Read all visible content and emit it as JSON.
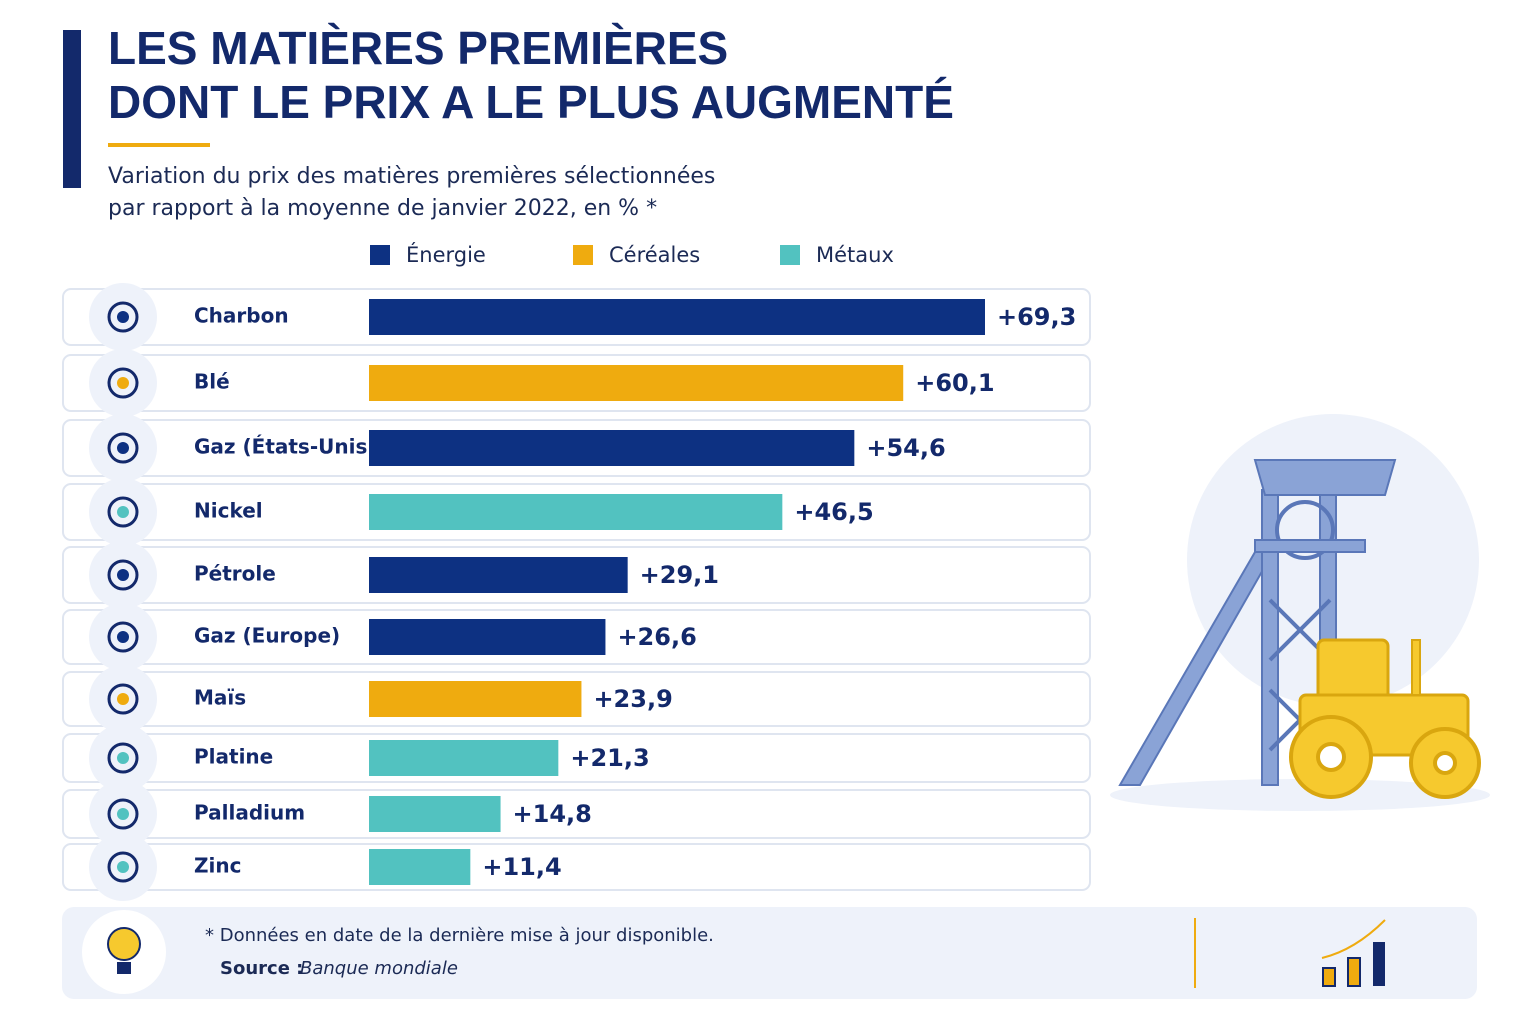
{
  "chart_data": {
    "type": "bar",
    "orientation": "horizontal",
    "title_lines": [
      "LES MATIÈRES PREMIÈRES",
      "DONT LE PRIX A LE PLUS AUGMENTÉ"
    ],
    "subtitle_lines": [
      "Variation du prix des matières premières sélectionnées",
      "par rapport à la moyenne de janvier 2022, en % *"
    ],
    "legend": [
      {
        "name": "Énergie",
        "color": "#0d3182"
      },
      {
        "name": "Céréales",
        "color": "#efab0f"
      },
      {
        "name": "Métaux",
        "color": "#52c2c0"
      }
    ],
    "categories": [
      "Charbon",
      "Blé",
      "Gaz (États-Unis)",
      "Nickel",
      "Pétrole",
      "Gaz (Europe)",
      "Maïs",
      "Platine",
      "Palladium",
      "Zinc"
    ],
    "values": [
      69.3,
      60.1,
      54.6,
      46.5,
      29.1,
      26.6,
      23.9,
      21.3,
      14.8,
      11.4
    ],
    "value_labels": [
      "+69,3",
      "+60,1",
      "+54,6",
      "+46,5",
      "+29,1",
      "+26,6",
      "+23,9",
      "+21,3",
      "+14,8",
      "+11,4"
    ],
    "colors": [
      "#0d3182",
      "#efab0f",
      "#0d3182",
      "#52c2c0",
      "#0d3182",
      "#0d3182",
      "#efab0f",
      "#52c2c0",
      "#52c2c0",
      "#52c2c0"
    ],
    "footnote": "* Données en date de la dernière mise à jour disponible.",
    "source_label": "Source :",
    "source": "Banque mondiale"
  }
}
